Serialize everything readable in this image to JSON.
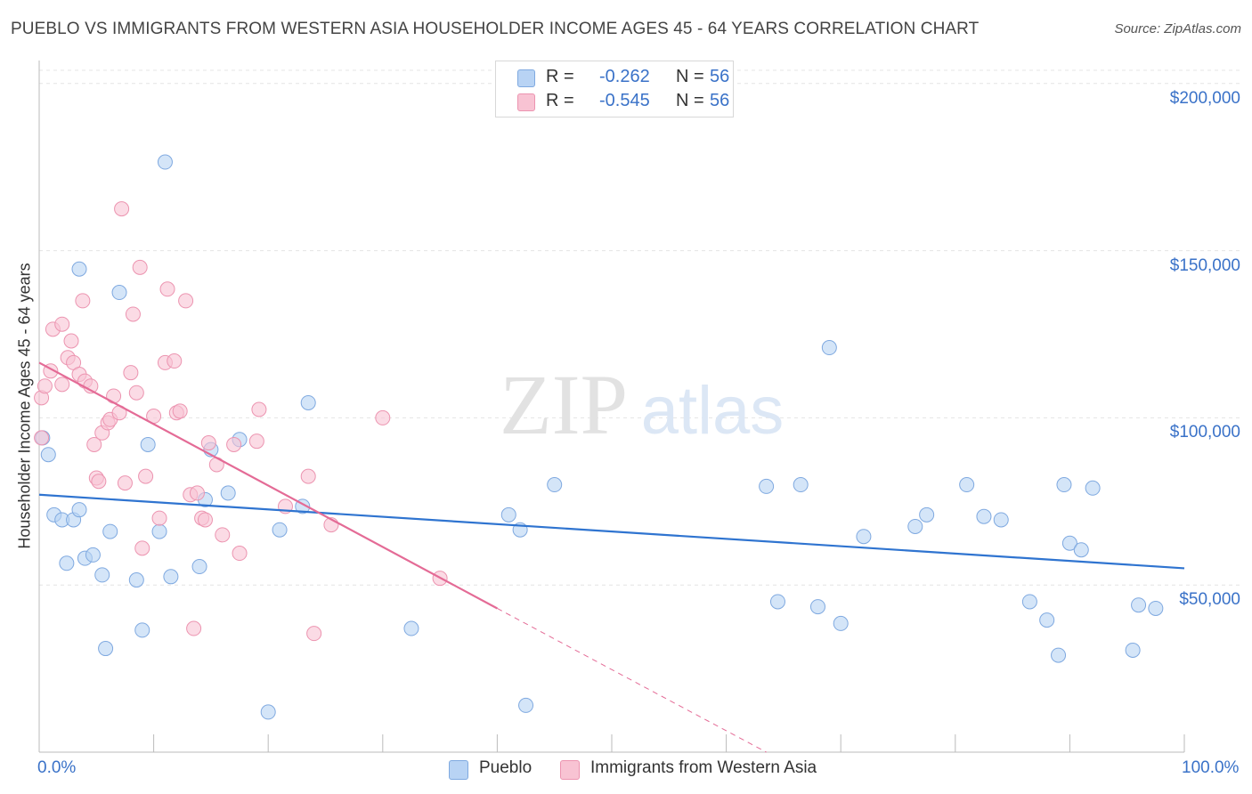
{
  "title": "PUEBLO VS IMMIGRANTS FROM WESTERN ASIA HOUSEHOLDER INCOME AGES 45 - 64 YEARS CORRELATION CHART",
  "source": "Source: ZipAtlas.com",
  "watermark": {
    "zip": "ZIP",
    "atlas": "atlas"
  },
  "legend": {
    "rows": [
      {
        "r_label": "R =",
        "r_value": "-0.262",
        "n_label": "N =",
        "n_value": "56"
      },
      {
        "r_label": "R =",
        "r_value": "-0.545",
        "n_label": "N =",
        "n_value": "56"
      }
    ]
  },
  "bottom_legend": {
    "series1": "Pueblo",
    "series2": "Immigrants from Western Asia"
  },
  "chart_data": {
    "type": "scatter",
    "xlabel_left": "0.0%",
    "xlabel_right": "100.0%",
    "ylabel": "Householder Income Ages 45 - 64 years",
    "xlim": [
      0,
      100
    ],
    "ylim": [
      0,
      205000
    ],
    "yticks": [
      {
        "value": 50000,
        "label": "$50,000"
      },
      {
        "value": 100000,
        "label": "$100,000"
      },
      {
        "value": 150000,
        "label": "$150,000"
      },
      {
        "value": 200000,
        "label": "$200,000"
      }
    ],
    "colors": {
      "series1_fill": "#b8d3f4",
      "series1_stroke": "#7fa9e0",
      "series1_line": "#2f74d0",
      "series2_fill": "#f8c3d3",
      "series2_stroke": "#ec94b0",
      "series2_line": "#e46b96"
    },
    "series": [
      {
        "name": "Pueblo",
        "points": [
          [
            0.3,
            94000
          ],
          [
            0.8,
            89000
          ],
          [
            1.3,
            71000
          ],
          [
            2.0,
            69500
          ],
          [
            2.4,
            56500
          ],
          [
            3.0,
            69500
          ],
          [
            3.5,
            72500
          ],
          [
            4.0,
            58000
          ],
          [
            4.7,
            59000
          ],
          [
            5.5,
            53000
          ],
          [
            6.2,
            66000
          ],
          [
            5.8,
            31000
          ],
          [
            7.0,
            137500
          ],
          [
            3.5,
            144500
          ],
          [
            8.5,
            51500
          ],
          [
            9.0,
            36500
          ],
          [
            9.5,
            92000
          ],
          [
            10.5,
            66000
          ],
          [
            11.0,
            176500
          ],
          [
            11.5,
            52500
          ],
          [
            14.0,
            55500
          ],
          [
            14.5,
            75500
          ],
          [
            15.0,
            90500
          ],
          [
            16.5,
            77500
          ],
          [
            17.5,
            93500
          ],
          [
            20.0,
            12000
          ],
          [
            21.0,
            66500
          ],
          [
            23.0,
            73500
          ],
          [
            23.5,
            104500
          ],
          [
            32.5,
            37000
          ],
          [
            41.0,
            71000
          ],
          [
            42.0,
            66500
          ],
          [
            42.5,
            14000
          ],
          [
            45.0,
            80000
          ],
          [
            63.5,
            79500
          ],
          [
            64.5,
            45000
          ],
          [
            66.5,
            80000
          ],
          [
            68.0,
            43500
          ],
          [
            69.0,
            121000
          ],
          [
            70.0,
            38500
          ],
          [
            72.0,
            64500
          ],
          [
            76.5,
            67500
          ],
          [
            77.5,
            71000
          ],
          [
            81.0,
            80000
          ],
          [
            82.5,
            70500
          ],
          [
            84.0,
            69500
          ],
          [
            86.5,
            45000
          ],
          [
            88.0,
            39500
          ],
          [
            89.0,
            29000
          ],
          [
            89.5,
            80000
          ],
          [
            90.0,
            62500
          ],
          [
            91.0,
            60500
          ],
          [
            92.0,
            79000
          ],
          [
            95.5,
            30500
          ],
          [
            96.0,
            44000
          ],
          [
            97.5,
            43000
          ]
        ],
        "trend": {
          "x": [
            0,
            100
          ],
          "y": [
            77000,
            55000
          ]
        }
      },
      {
        "name": "Immigrants from Western Asia",
        "points": [
          [
            0.2,
            106000
          ],
          [
            0.2,
            94000
          ],
          [
            0.5,
            109500
          ],
          [
            1.0,
            114000
          ],
          [
            1.2,
            126500
          ],
          [
            2.0,
            128000
          ],
          [
            2.0,
            110000
          ],
          [
            2.5,
            118000
          ],
          [
            2.8,
            123000
          ],
          [
            3.0,
            116500
          ],
          [
            3.5,
            113000
          ],
          [
            3.8,
            135000
          ],
          [
            4.0,
            111000
          ],
          [
            4.5,
            109500
          ],
          [
            4.8,
            92000
          ],
          [
            5.0,
            82000
          ],
          [
            5.2,
            81000
          ],
          [
            5.5,
            95500
          ],
          [
            6.0,
            98500
          ],
          [
            6.2,
            99500
          ],
          [
            6.5,
            106500
          ],
          [
            7.0,
            101500
          ],
          [
            7.2,
            162500
          ],
          [
            7.5,
            80500
          ],
          [
            8.0,
            113500
          ],
          [
            8.2,
            131000
          ],
          [
            8.5,
            107500
          ],
          [
            8.8,
            145000
          ],
          [
            9.0,
            61000
          ],
          [
            9.3,
            82500
          ],
          [
            10.0,
            100500
          ],
          [
            10.5,
            70000
          ],
          [
            11.0,
            116500
          ],
          [
            11.2,
            138500
          ],
          [
            11.8,
            117000
          ],
          [
            12.0,
            101500
          ],
          [
            12.3,
            102000
          ],
          [
            12.8,
            135000
          ],
          [
            13.2,
            77000
          ],
          [
            13.5,
            37000
          ],
          [
            13.8,
            77500
          ],
          [
            14.2,
            70000
          ],
          [
            14.5,
            69500
          ],
          [
            14.8,
            92500
          ],
          [
            15.5,
            86000
          ],
          [
            16.0,
            65000
          ],
          [
            17.0,
            92000
          ],
          [
            17.5,
            59500
          ],
          [
            19.0,
            93000
          ],
          [
            19.2,
            102500
          ],
          [
            21.5,
            73500
          ],
          [
            23.5,
            82500
          ],
          [
            24.0,
            35500
          ],
          [
            25.5,
            68000
          ],
          [
            30.0,
            100000
          ],
          [
            35.0,
            52000
          ]
        ],
        "trend": {
          "x": [
            0,
            40
          ],
          "y": [
            116500,
            43000
          ]
        },
        "trend_dashed": {
          "x": [
            40,
            63.5
          ],
          "y": [
            43000,
            0
          ]
        }
      }
    ]
  }
}
